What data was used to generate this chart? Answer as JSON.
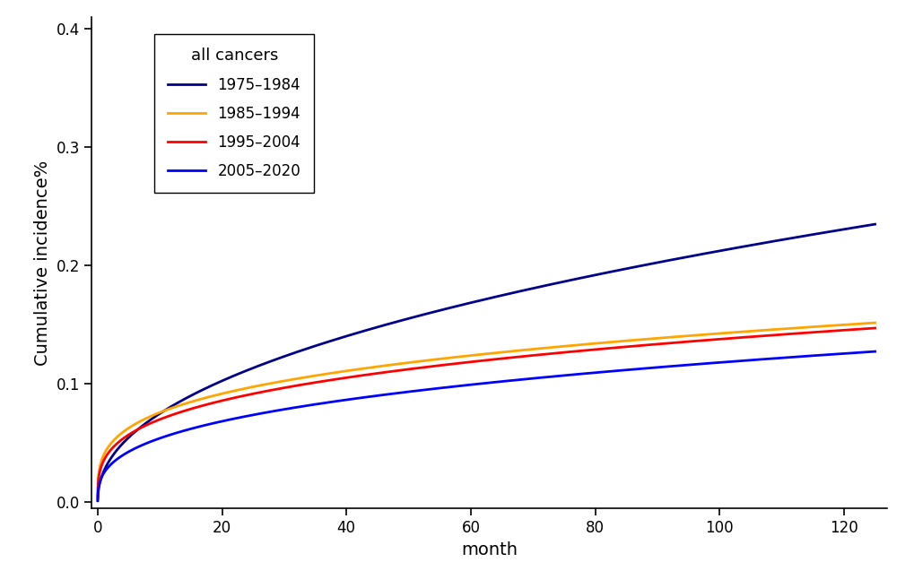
{
  "title": "",
  "xlabel": "month",
  "ylabel": "Cumulative incidence%",
  "xlim": [
    -1,
    127
  ],
  "ylim": [
    -0.005,
    0.41
  ],
  "xticks": [
    0,
    20,
    40,
    60,
    80,
    100,
    120
  ],
  "yticks": [
    0.0,
    0.1,
    0.2,
    0.3,
    0.4
  ],
  "legend_title": "all cancers",
  "series": [
    {
      "label": "1975–1984",
      "color": "#00008B",
      "lw": 2.0,
      "power_a": 0.0335,
      "power_b": 0.52
    },
    {
      "label": "1985–1994",
      "color": "#FFA500",
      "lw": 2.0,
      "power_a": 0.0195,
      "power_b": 0.52
    },
    {
      "label": "1995–2004",
      "color": "#FF0000",
      "lw": 2.0,
      "power_a": 0.0178,
      "power_b": 0.52
    },
    {
      "label": "2005–2020",
      "color": "#0000FF",
      "lw": 2.0,
      "power_a": 0.0138,
      "power_b": 0.52
    }
  ],
  "background_color": "#FFFFFF"
}
